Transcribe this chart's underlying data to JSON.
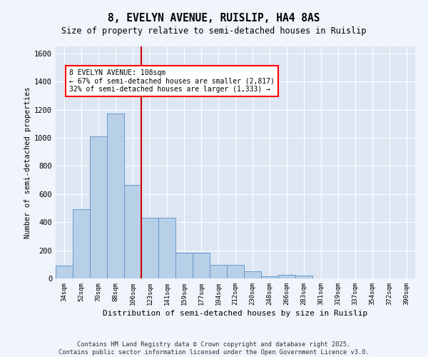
{
  "title1": "8, EVELYN AVENUE, RUISLIP, HA4 8AS",
  "title2": "Size of property relative to semi-detached houses in Ruislip",
  "xlabel": "Distribution of semi-detached houses by size in Ruislip",
  "ylabel": "Number of semi-detached properties",
  "categories": [
    "34sqm",
    "52sqm",
    "70sqm",
    "88sqm",
    "106sqm",
    "123sqm",
    "141sqm",
    "159sqm",
    "177sqm",
    "194sqm",
    "212sqm",
    "230sqm",
    "248sqm",
    "266sqm",
    "283sqm",
    "301sqm",
    "319sqm",
    "337sqm",
    "354sqm",
    "372sqm",
    "390sqm"
  ],
  "values": [
    90,
    490,
    1010,
    1175,
    665,
    430,
    430,
    185,
    185,
    95,
    95,
    50,
    15,
    25,
    20,
    0,
    0,
    0,
    0,
    0,
    0
  ],
  "bar_color": "#b8cfe8",
  "bar_edge_color": "#6699cc",
  "property_line_x": 4.5,
  "annotation_text": "8 EVELYN AVENUE: 108sqm\n← 67% of semi-detached houses are smaller (2,817)\n32% of semi-detached houses are larger (1,333) →",
  "vline_color": "#cc0000",
  "ylim": [
    0,
    1650
  ],
  "yticks": [
    0,
    200,
    400,
    600,
    800,
    1000,
    1200,
    1400,
    1600
  ],
  "bg_color": "#dde6f2",
  "grid_color": "#ffffff",
  "footnote1": "Contains HM Land Registry data © Crown copyright and database right 2025.",
  "footnote2": "Contains public sector information licensed under the Open Government Licence v3.0."
}
